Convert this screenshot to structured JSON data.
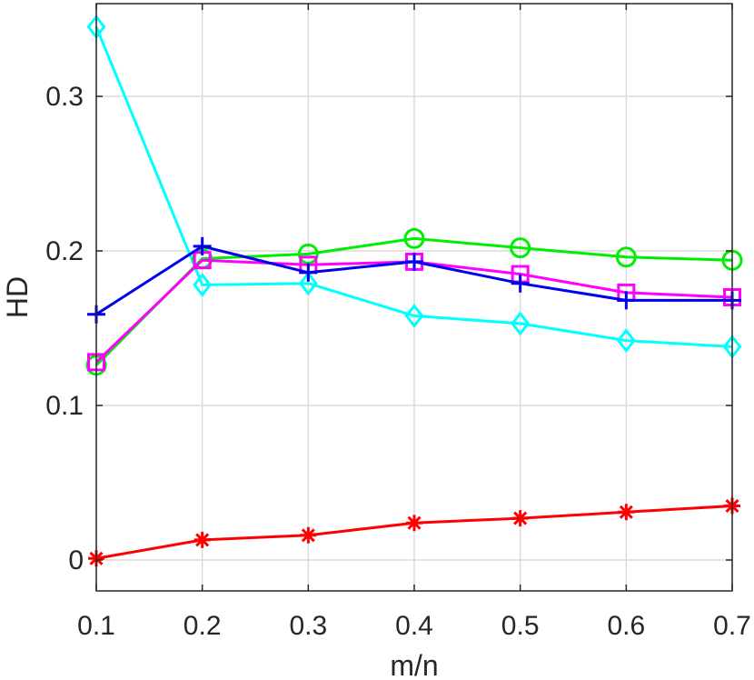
{
  "chart_data": {
    "type": "line",
    "title": "",
    "xlabel": "m/n",
    "ylabel": "HD",
    "x": [
      0.1,
      0.2,
      0.3,
      0.4,
      0.5,
      0.6,
      0.7
    ],
    "xlim": [
      0.1,
      0.7
    ],
    "ylim": [
      -0.02,
      0.36
    ],
    "xticks": [
      "0.1",
      "0.2",
      "0.3",
      "0.4",
      "0.5",
      "0.6",
      "0.7"
    ],
    "yticks": [
      "0",
      "0.1",
      "0.2",
      "0.3"
    ],
    "grid": true,
    "series": [
      {
        "color": "#00ffff",
        "marker": "diamond",
        "values": [
          0.345,
          0.178,
          0.179,
          0.158,
          0.153,
          0.142,
          0.138
        ]
      },
      {
        "color": "#00ee00",
        "marker": "circle",
        "values": [
          0.126,
          0.195,
          0.198,
          0.208,
          0.202,
          0.196,
          0.194
        ]
      },
      {
        "color": "#ff00ff",
        "marker": "square",
        "values": [
          0.128,
          0.194,
          0.191,
          0.193,
          0.185,
          0.173,
          0.17
        ]
      },
      {
        "color": "#0000ee",
        "marker": "plus",
        "values": [
          0.159,
          0.203,
          0.186,
          0.193,
          0.179,
          0.168,
          0.168
        ]
      },
      {
        "color": "#ff0000",
        "marker": "asterisk",
        "values": [
          0.001,
          0.013,
          0.016,
          0.024,
          0.027,
          0.031,
          0.035
        ]
      }
    ]
  }
}
